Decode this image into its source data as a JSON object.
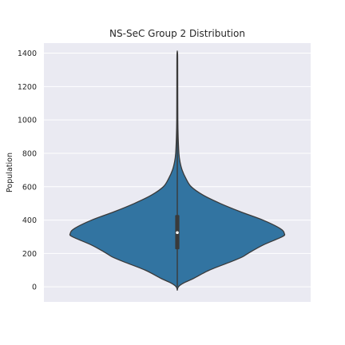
{
  "chart_data": {
    "type": "violin",
    "title": "NS-SeC Group 2 Distribution",
    "xlabel": "",
    "ylabel": "Population",
    "ylim": [
      -90,
      1460
    ],
    "y_ticks": [
      0,
      200,
      400,
      600,
      800,
      1000,
      1200,
      1400
    ],
    "grid": true,
    "legend": "none",
    "colors": {
      "background": "#eaeaf2",
      "grid": "#ffffff",
      "violin_fill": "#3274a1",
      "violin_edge": "#3a3a3a",
      "box": "#3a3a3a",
      "median": "#ffffff"
    },
    "series": [
      {
        "range": [
          -20,
          1390
        ],
        "quartiles": [
          225,
          325,
          430
        ],
        "median": 325,
        "whisker": [
          0,
          1390
        ],
        "density_profile": [
          [
            -20,
            0.0
          ],
          [
            0,
            0.01
          ],
          [
            20,
            0.05
          ],
          [
            50,
            0.15
          ],
          [
            100,
            0.3
          ],
          [
            150,
            0.5
          ],
          [
            180,
            0.61
          ],
          [
            200,
            0.66
          ],
          [
            250,
            0.8
          ],
          [
            300,
            0.98
          ],
          [
            320,
            1.0
          ],
          [
            350,
            0.96
          ],
          [
            400,
            0.8
          ],
          [
            450,
            0.59
          ],
          [
            500,
            0.4
          ],
          [
            550,
            0.24
          ],
          [
            600,
            0.13
          ],
          [
            650,
            0.08
          ],
          [
            700,
            0.045
          ],
          [
            750,
            0.025
          ],
          [
            800,
            0.015
          ],
          [
            900,
            0.008
          ],
          [
            1000,
            0.005
          ],
          [
            1200,
            0.004
          ],
          [
            1390,
            0.003
          ]
        ]
      }
    ]
  }
}
